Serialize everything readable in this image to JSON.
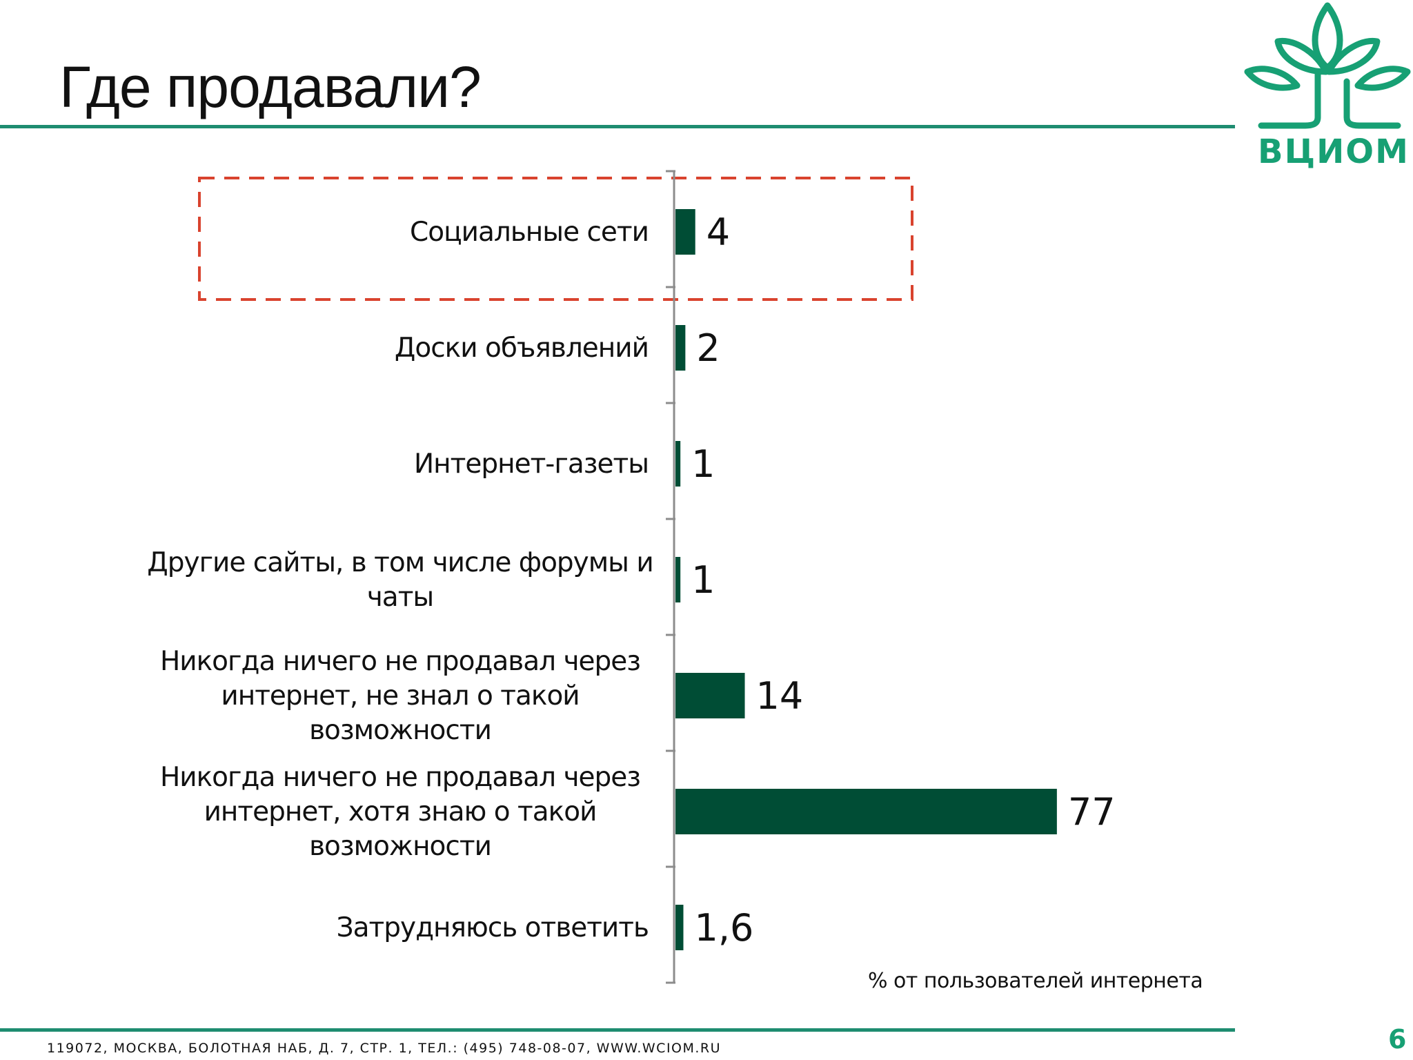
{
  "slide": {
    "title": "Где продавали?",
    "logo_text": "ВЦИОМ",
    "footer_address": "119072, МОСКВА, БОЛОТНАЯ НАБ, Д. 7, СТР. 1, ТЕЛ.: (495) 748-08-07,  WWW.WCIOM.RU",
    "page_number": "6",
    "unit_note": "% от пользователей интернета"
  },
  "colors": {
    "bar": "#004d35",
    "accent": "#1e8c70",
    "logo": "#17a074",
    "highlight_box": "#d9432e",
    "axis": "#8c8c8c"
  },
  "chart_data": {
    "type": "bar",
    "orientation": "horizontal",
    "categories": [
      "Социальные сети",
      "Доски объявлений",
      "Интернет-газеты",
      "Другие сайты, в том числе форумы и чаты",
      "Никогда ничего не продавал через интернет, не знал о такой возможности",
      "Никогда ничего не продавал через интернет, хотя знаю о такой возможности",
      "Затрудняюсь ответить"
    ],
    "category_lines": [
      [
        "Социальные сети"
      ],
      [
        "Доски объявлений"
      ],
      [
        "Интернет-газеты"
      ],
      [
        "Другие сайты, в том числе форумы и",
        "чаты"
      ],
      [
        "Никогда ничего не продавал через",
        "интернет, не знал о такой",
        "возможности"
      ],
      [
        "Никогда ничего не продавал через",
        "интернет, хотя знаю о такой",
        "возможности"
      ],
      [
        "Затрудняюсь ответить"
      ]
    ],
    "values": [
      4,
      2,
      1,
      1,
      14,
      77,
      1.6
    ],
    "value_labels": [
      "4",
      "2",
      "1",
      "1",
      "14",
      "77",
      "1,6"
    ],
    "highlighted_category": "Социальные сети",
    "xlim": [
      0,
      100
    ],
    "grid": false,
    "legend": "none"
  }
}
